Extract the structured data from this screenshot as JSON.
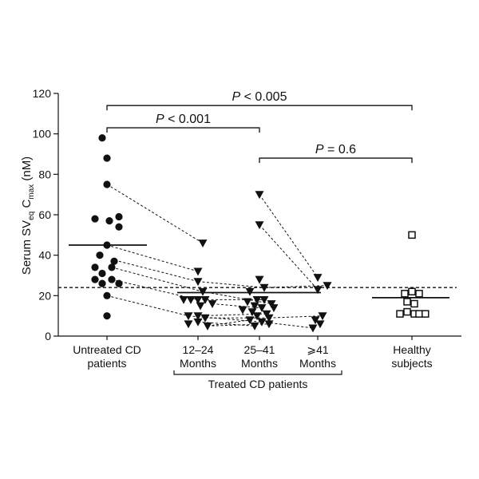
{
  "chart_data": {
    "type": "scatter",
    "ylabel": {
      "prefix": "Serum SV",
      "sub1": "eq",
      "mid": " C",
      "sub2": "max",
      "suffix": " (nM)"
    },
    "ylim": [
      0,
      120
    ],
    "yticks": [
      0,
      20,
      40,
      60,
      80,
      100,
      120
    ],
    "categories": [
      {
        "line1": "Untreated CD",
        "line2": "patients"
      },
      {
        "line1": "12–24",
        "line2": "Months"
      },
      {
        "line1": "25–41",
        "line2": "Months"
      },
      {
        "line1": "⩾41",
        "line2": "Months"
      },
      {
        "line1": "Healthy",
        "line2": "subjects"
      }
    ],
    "group_label": "Treated CD patients",
    "reference_line": 24,
    "colors": {
      "ink": "#111111",
      "background": "#ffffff"
    },
    "untreated": {
      "marker": "circle",
      "mean": 45,
      "points": [
        {
          "x": -0.1,
          "y": 98
        },
        {
          "x": 0,
          "y": 88
        },
        {
          "x": 0,
          "y": 75
        },
        {
          "x": -0.25,
          "y": 58
        },
        {
          "x": 0.05,
          "y": 57
        },
        {
          "x": 0.25,
          "y": 59
        },
        {
          "x": 0.25,
          "y": 54
        },
        {
          "x": 0,
          "y": 45
        },
        {
          "x": -0.15,
          "y": 40
        },
        {
          "x": 0.15,
          "y": 37
        },
        {
          "x": -0.25,
          "y": 34
        },
        {
          "x": 0.1,
          "y": 34
        },
        {
          "x": -0.1,
          "y": 31
        },
        {
          "x": -0.25,
          "y": 28
        },
        {
          "x": 0.1,
          "y": 28
        },
        {
          "x": -0.1,
          "y": 26
        },
        {
          "x": 0.25,
          "y": 26
        },
        {
          "x": 0,
          "y": 20
        },
        {
          "x": 0,
          "y": 10
        }
      ]
    },
    "treated": {
      "marker": "triangle-down",
      "mean": 21.5,
      "points_12_24": [
        {
          "x": 0.1,
          "y": 46
        },
        {
          "x": 0,
          "y": 32
        },
        {
          "x": 0,
          "y": 27
        },
        {
          "x": 0.1,
          "y": 22
        },
        {
          "x": -0.3,
          "y": 18
        },
        {
          "x": -0.15,
          "y": 18
        },
        {
          "x": 0,
          "y": 18
        },
        {
          "x": 0.15,
          "y": 18
        },
        {
          "x": 0.3,
          "y": 16
        },
        {
          "x": 0.05,
          "y": 15
        },
        {
          "x": -0.2,
          "y": 10
        },
        {
          "x": 0,
          "y": 10
        },
        {
          "x": 0.15,
          "y": 9
        },
        {
          "x": -0.2,
          "y": 6
        },
        {
          "x": 0,
          "y": 7
        },
        {
          "x": 0.2,
          "y": 5
        }
      ],
      "points_25_41": [
        {
          "x": 0,
          "y": 70
        },
        {
          "x": 0,
          "y": 55
        },
        {
          "x": 0,
          "y": 28
        },
        {
          "x": 0.1,
          "y": 24
        },
        {
          "x": -0.2,
          "y": 22
        },
        {
          "x": -0.05,
          "y": 18
        },
        {
          "x": 0.1,
          "y": 18
        },
        {
          "x": -0.25,
          "y": 17
        },
        {
          "x": 0.25,
          "y": 16
        },
        {
          "x": -0.1,
          "y": 15
        },
        {
          "x": 0.05,
          "y": 14
        },
        {
          "x": 0.3,
          "y": 14
        },
        {
          "x": -0.35,
          "y": 13
        },
        {
          "x": -0.15,
          "y": 12
        },
        {
          "x": 0.15,
          "y": 11
        },
        {
          "x": -0.05,
          "y": 10
        },
        {
          "x": 0.2,
          "y": 9
        },
        {
          "x": -0.2,
          "y": 8
        },
        {
          "x": 0.05,
          "y": 7
        },
        {
          "x": -0.1,
          "y": 5
        },
        {
          "x": 0.2,
          "y": 6
        }
      ],
      "points_41": [
        {
          "x": 0,
          "y": 29
        },
        {
          "x": 0.2,
          "y": 25
        },
        {
          "x": 0,
          "y": 23
        },
        {
          "x": 0.1,
          "y": 10
        },
        {
          "x": -0.05,
          "y": 8
        },
        {
          "x": 0.05,
          "y": 6
        },
        {
          "x": -0.1,
          "y": 4
        }
      ]
    },
    "healthy": {
      "marker": "square-open",
      "mean": 19,
      "points": [
        {
          "x": 0,
          "y": 50
        },
        {
          "x": -0.15,
          "y": 21
        },
        {
          "x": 0,
          "y": 22
        },
        {
          "x": 0.15,
          "y": 21
        },
        {
          "x": -0.1,
          "y": 17
        },
        {
          "x": 0.05,
          "y": 16
        },
        {
          "x": -0.25,
          "y": 11
        },
        {
          "x": -0.1,
          "y": 12
        },
        {
          "x": 0.05,
          "y": 11
        },
        {
          "x": 0.15,
          "y": 11
        },
        {
          "x": 0.28,
          "y": 11
        }
      ]
    },
    "connections": [
      {
        "from": [
          0,
          75
        ],
        "to": [
          1.1,
          46
        ]
      },
      {
        "from": [
          0,
          45
        ],
        "to": [
          1,
          32
        ]
      },
      {
        "from": [
          0.25,
          37
        ],
        "to": [
          1,
          27
        ]
      },
      {
        "from": [
          0.1,
          34
        ],
        "to": [
          1.1,
          22
        ]
      },
      {
        "from": [
          0.1,
          28
        ],
        "to": [
          1,
          18
        ]
      },
      {
        "from": [
          0,
          20
        ],
        "to": [
          0.8,
          10
        ]
      },
      {
        "from": [
          1,
          27
        ],
        "to": [
          2.1,
          24
        ]
      },
      {
        "from": [
          1.1,
          22
        ],
        "to": [
          2.25,
          16
        ]
      },
      {
        "from": [
          1,
          18
        ],
        "to": [
          2.1,
          18
        ]
      },
      {
        "from": [
          1.3,
          16
        ],
        "to": [
          2,
          14
        ]
      },
      {
        "from": [
          1,
          10
        ],
        "to": [
          2.15,
          11
        ]
      },
      {
        "from": [
          1.15,
          9
        ],
        "to": [
          2.2,
          9
        ]
      },
      {
        "from": [
          0.8,
          10
        ],
        "to": [
          2.05,
          7
        ]
      },
      {
        "from": [
          1,
          7
        ],
        "to": [
          1.9,
          5
        ]
      },
      {
        "from": [
          1.2,
          5
        ],
        "to": [
          1.8,
          8
        ]
      },
      {
        "from": [
          1.2,
          5
        ],
        "to": [
          2.2,
          6
        ]
      },
      {
        "from": [
          2,
          70
        ],
        "to": [
          3,
          29
        ]
      },
      {
        "from": [
          2,
          55
        ],
        "to": [
          3,
          23
        ]
      },
      {
        "from": [
          2.1,
          24
        ],
        "to": [
          3.2,
          25
        ]
      },
      {
        "from": [
          2.2,
          9
        ],
        "to": [
          3.1,
          10
        ]
      },
      {
        "from": [
          2.05,
          7
        ],
        "to": [
          2.9,
          4
        ]
      }
    ],
    "brackets": [
      {
        "label": "P < 0.005",
        "from": 0,
        "to": 4,
        "y": 114
      },
      {
        "label": "P < 0.001",
        "from": 0,
        "to": 2,
        "y": 103
      },
      {
        "label": "P = 0.6",
        "from": 2,
        "to": 4,
        "y": 88
      }
    ]
  }
}
